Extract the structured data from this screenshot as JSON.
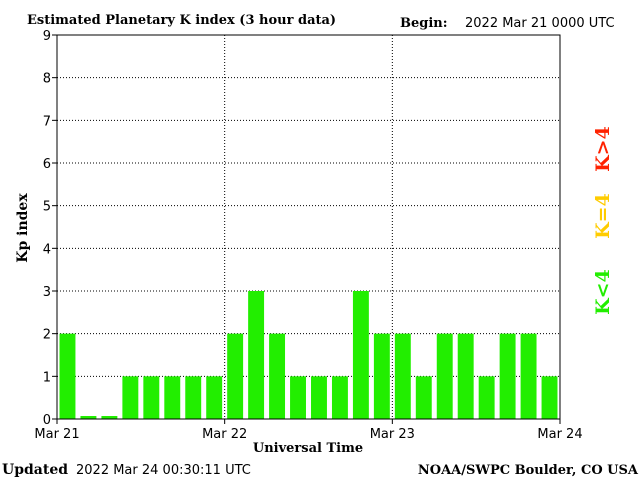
{
  "header": {
    "title": "Estimated Planetary K index (3 hour data)",
    "begin_label": "Begin:",
    "begin_value": "2022 Mar 21 0000 UTC"
  },
  "footer": {
    "updated_label": "Updated",
    "updated_value": "2022 Mar 24 00:30:11 UTC",
    "source": "NOAA/SWPC Boulder, CO USA"
  },
  "legend": {
    "high": "K>4",
    "mid": "K=4",
    "low": "K<4",
    "colors": {
      "high": "#ff2200",
      "mid": "#ffcc00",
      "low": "#22ee00"
    }
  },
  "chart_data": {
    "type": "bar",
    "title": "Estimated Planetary K index (3 hour data)",
    "xlabel": "Universal Time",
    "ylabel": "Kp index",
    "ylim": [
      0,
      9
    ],
    "yticks": [
      "0",
      "1",
      "2",
      "3",
      "4",
      "5",
      "6",
      "7",
      "8",
      "9"
    ],
    "xticks": [
      "Mar 21",
      "Mar 22",
      "Mar 23",
      "Mar 24"
    ],
    "bar_color": "#22ee00",
    "grid": "dotted",
    "categories": [
      "Mar 21 00",
      "Mar 21 03",
      "Mar 21 06",
      "Mar 21 09",
      "Mar 21 12",
      "Mar 21 15",
      "Mar 21 18",
      "Mar 21 21",
      "Mar 22 00",
      "Mar 22 03",
      "Mar 22 06",
      "Mar 22 09",
      "Mar 22 12",
      "Mar 22 15",
      "Mar 22 18",
      "Mar 22 21",
      "Mar 23 00",
      "Mar 23 03",
      "Mar 23 06",
      "Mar 23 09",
      "Mar 23 12",
      "Mar 23 15",
      "Mar 23 18",
      "Mar 23 21"
    ],
    "values": [
      2,
      0,
      0,
      1,
      1,
      1,
      1,
      1,
      2,
      3,
      2,
      1,
      1,
      1,
      3,
      2,
      2,
      1,
      2,
      2,
      1,
      2,
      2,
      1
    ]
  }
}
